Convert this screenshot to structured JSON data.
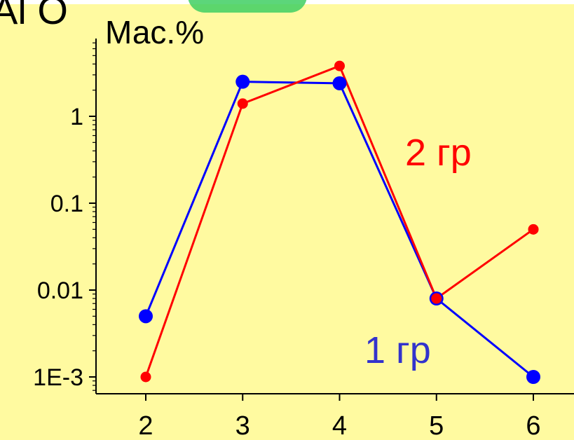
{
  "slide_fragment": "Al O",
  "chart_data": {
    "type": "line",
    "ylabel": "Мас.%",
    "yscale": "log",
    "ylim": [
      0.0006,
      5
    ],
    "xlim": [
      1.5,
      6.5
    ],
    "yticks": [
      0.001,
      0.01,
      0.1,
      1
    ],
    "ytick_labels": [
      "1E-3",
      "0.01",
      "0.1",
      "1"
    ],
    "x": [
      2,
      3,
      4,
      5,
      6
    ],
    "xtick_labels": [
      "2",
      "3",
      "4",
      "5",
      "6"
    ],
    "series": [
      {
        "name": "1 гр",
        "color": "#0000ff",
        "values": [
          0.005,
          2.5,
          2.4,
          0.008,
          0.001
        ]
      },
      {
        "name": "2 гр",
        "color": "#ff0000",
        "values": [
          0.001,
          1.4,
          3.8,
          0.008,
          0.05
        ]
      }
    ],
    "annotations": [
      {
        "text": "2 гр",
        "color": "#ff0000"
      },
      {
        "text": "1 гр",
        "color": "#3333cc"
      }
    ]
  }
}
